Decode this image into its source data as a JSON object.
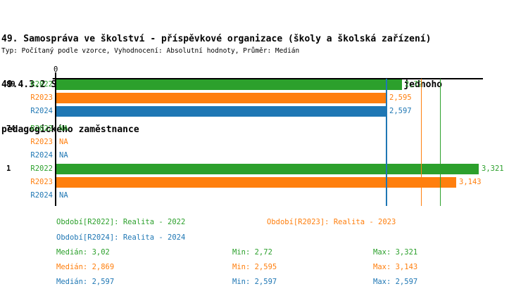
{
  "title": {
    "line1": "49. Samospráva ve školství - příspěvkové organizace (školy a školská zařízení)",
    "line2": "49.4.3.2 Školy zřízené dle § 16 odst. 9 školského zákona - Počet žáků na jednoho",
    "line3": "pedagogického zaměstnance",
    "subtitle": "Typ: Počítaný podle vzorce, Vyhodnocení: Absolutní hodnoty, Průměr: Medián"
  },
  "colors": {
    "green": "#2ca02c",
    "orange": "#ff7f0e",
    "blue": "#1f77b4",
    "axis": "#000000"
  },
  "chart_data": {
    "type": "bar",
    "orientation": "horizontal",
    "x_axis": {
      "origin_label": "0",
      "xlim": [
        0,
        3.321
      ],
      "gridlines": false
    },
    "groups": [
      {
        "label": "89",
        "rows": [
          {
            "series": "R2022",
            "value": 2.72,
            "display": "2,72",
            "color_key": "green"
          },
          {
            "series": "R2023",
            "value": 2.595,
            "display": "2,595",
            "color_key": "orange"
          },
          {
            "series": "R2024",
            "value": 2.597,
            "display": "2,597",
            "color_key": "blue"
          }
        ]
      },
      {
        "label": "74",
        "rows": [
          {
            "series": "R2022",
            "value": null,
            "display": "NA",
            "color_key": "green"
          },
          {
            "series": "R2023",
            "value": null,
            "display": "NA",
            "color_key": "orange"
          },
          {
            "series": "R2024",
            "value": null,
            "display": "NA",
            "color_key": "blue"
          }
        ]
      },
      {
        "label": "1",
        "rows": [
          {
            "series": "R2022",
            "value": 3.321,
            "display": "3,321",
            "color_key": "green"
          },
          {
            "series": "R2023",
            "value": 3.143,
            "display": "3,143",
            "color_key": "orange"
          },
          {
            "series": "R2024",
            "value": null,
            "display": "NA",
            "color_key": "blue"
          }
        ]
      }
    ],
    "median_lines": [
      {
        "series": "R2022",
        "value": 3.02,
        "color_key": "green"
      },
      {
        "series": "R2023",
        "value": 2.869,
        "color_key": "orange"
      },
      {
        "series": "R2024",
        "value": 2.597,
        "color_key": "blue"
      }
    ]
  },
  "legend": {
    "items": [
      {
        "text": "Období[R2022]: Realita - 2022",
        "color_key": "green"
      },
      {
        "text": "Období[R2023]: Realita - 2023",
        "color_key": "orange"
      },
      {
        "text": "Období[R2024]: Realita - 2024",
        "color_key": "blue"
      }
    ]
  },
  "stats": {
    "rows": [
      {
        "median": "Medián: 3,02",
        "min": "Min: 2,72",
        "max": "Max: 3,321",
        "color_key": "green"
      },
      {
        "median": "Medián: 2,869",
        "min": "Min: 2,595",
        "max": "Max: 3,143",
        "color_key": "orange"
      },
      {
        "median": "Medián: 2,597",
        "min": "Min: 2,597",
        "max": "Max: 2,597",
        "color_key": "blue"
      }
    ]
  }
}
